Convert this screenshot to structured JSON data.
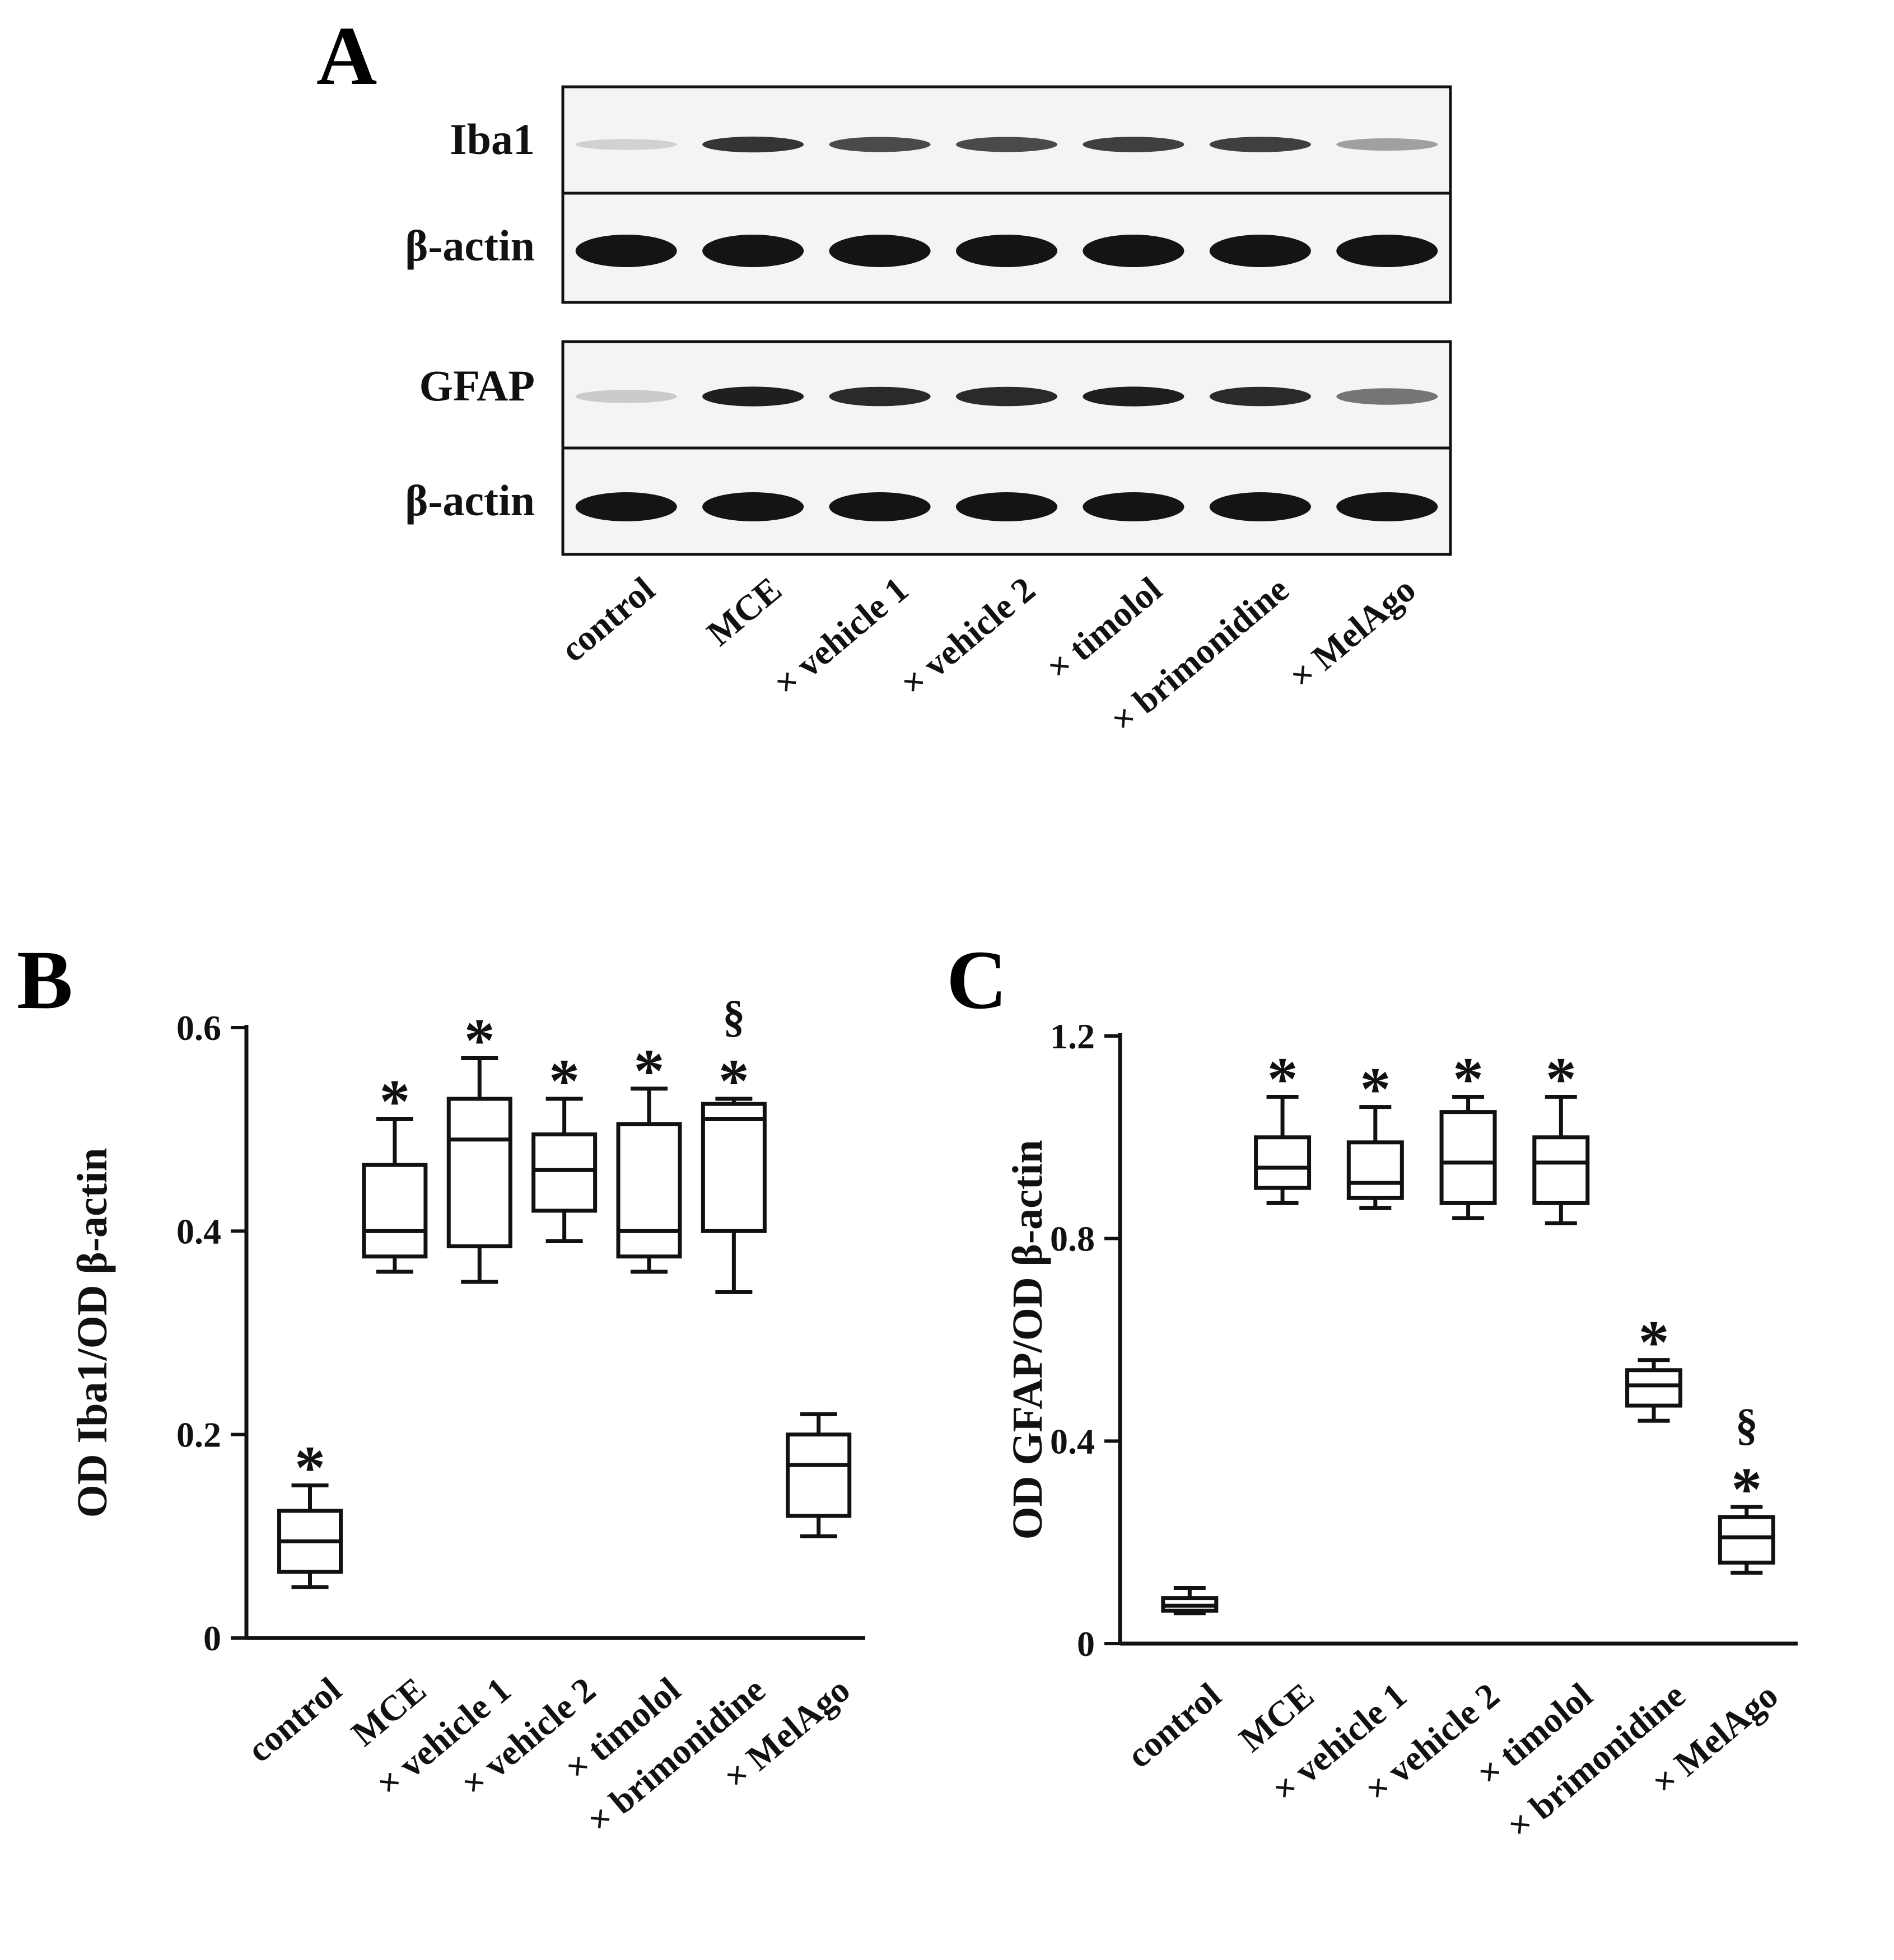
{
  "panel_a": {
    "letter": "A",
    "row_labels": [
      "Iba1",
      "β-actin",
      "GFAP",
      "β-actin"
    ],
    "lanes": [
      "control",
      "MCE",
      "× vehicle 1",
      "× vehicle 2",
      "× timolol",
      "× brimonidine",
      "× MelAgo"
    ],
    "band_intensity": {
      "Iba1": [
        0.12,
        0.85,
        0.75,
        0.75,
        0.8,
        0.8,
        0.35
      ],
      "beta_actin_1": [
        1.0,
        1.0,
        1.0,
        1.0,
        1.0,
        1.0,
        1.0
      ],
      "GFAP": [
        0.15,
        0.95,
        0.9,
        0.9,
        0.95,
        0.9,
        0.55
      ],
      "beta_actin_2": [
        1.0,
        1.0,
        1.0,
        1.0,
        1.0,
        1.0,
        1.0
      ]
    }
  },
  "chart_data": [
    {
      "panel": "B",
      "type": "box",
      "ylabel": "OD Iba1/OD β-actin",
      "categories": [
        "control",
        "MCE",
        "× vehicle 1",
        "× vehicle 2",
        "× timolol",
        "× brimonidine",
        "× MelAgo"
      ],
      "ylim": [
        0,
        0.6
      ],
      "yticks": [
        0,
        0.2,
        0.4,
        0.6
      ],
      "ytick_labels": [
        "0",
        "0.2",
        "0.4",
        "0.6"
      ],
      "boxes": [
        {
          "min": 0.05,
          "q1": 0.065,
          "median": 0.095,
          "q3": 0.125,
          "max": 0.15
        },
        {
          "min": 0.36,
          "q1": 0.375,
          "median": 0.4,
          "q3": 0.465,
          "max": 0.51
        },
        {
          "min": 0.35,
          "q1": 0.385,
          "median": 0.49,
          "q3": 0.53,
          "max": 0.57
        },
        {
          "min": 0.39,
          "q1": 0.42,
          "median": 0.46,
          "q3": 0.495,
          "max": 0.53
        },
        {
          "min": 0.36,
          "q1": 0.375,
          "median": 0.4,
          "q3": 0.505,
          "max": 0.54
        },
        {
          "min": 0.34,
          "q1": 0.4,
          "median": 0.51,
          "q3": 0.525,
          "max": 0.53
        },
        {
          "min": 0.1,
          "q1": 0.12,
          "median": 0.17,
          "q3": 0.2,
          "max": 0.22
        }
      ],
      "annotations": [
        "*",
        "*",
        "*",
        "*",
        "*",
        "* §"
      ]
    },
    {
      "panel": "C",
      "type": "box",
      "ylabel": "OD GFAP/OD β-actin",
      "categories": [
        "control",
        "MCE",
        "× vehicle 1",
        "× vehicle 2",
        "× timolol",
        "× brimonidine",
        "× MelAgo"
      ],
      "ylim": [
        0,
        1.2
      ],
      "yticks": [
        0,
        0.4,
        0.8,
        1.2
      ],
      "ytick_labels": [
        "0",
        "0.4",
        "0.8",
        "1.2"
      ],
      "boxes": [
        {
          "min": 0.06,
          "q1": 0.065,
          "median": 0.075,
          "q3": 0.09,
          "max": 0.11
        },
        {
          "min": 0.87,
          "q1": 0.9,
          "median": 0.94,
          "q3": 1.0,
          "max": 1.08
        },
        {
          "min": 0.86,
          "q1": 0.88,
          "median": 0.91,
          "q3": 0.99,
          "max": 1.06
        },
        {
          "min": 0.84,
          "q1": 0.87,
          "median": 0.95,
          "q3": 1.05,
          "max": 1.08
        },
        {
          "min": 0.83,
          "q1": 0.87,
          "median": 0.95,
          "q3": 1.0,
          "max": 1.08
        },
        {
          "min": 0.44,
          "q1": 0.47,
          "median": 0.51,
          "q3": 0.54,
          "max": 0.56
        },
        {
          "min": 0.14,
          "q1": 0.16,
          "median": 0.21,
          "q3": 0.25,
          "max": 0.27
        }
      ],
      "annotations": [
        "",
        "*",
        "*",
        "*",
        "*",
        "*",
        "* §"
      ]
    }
  ]
}
